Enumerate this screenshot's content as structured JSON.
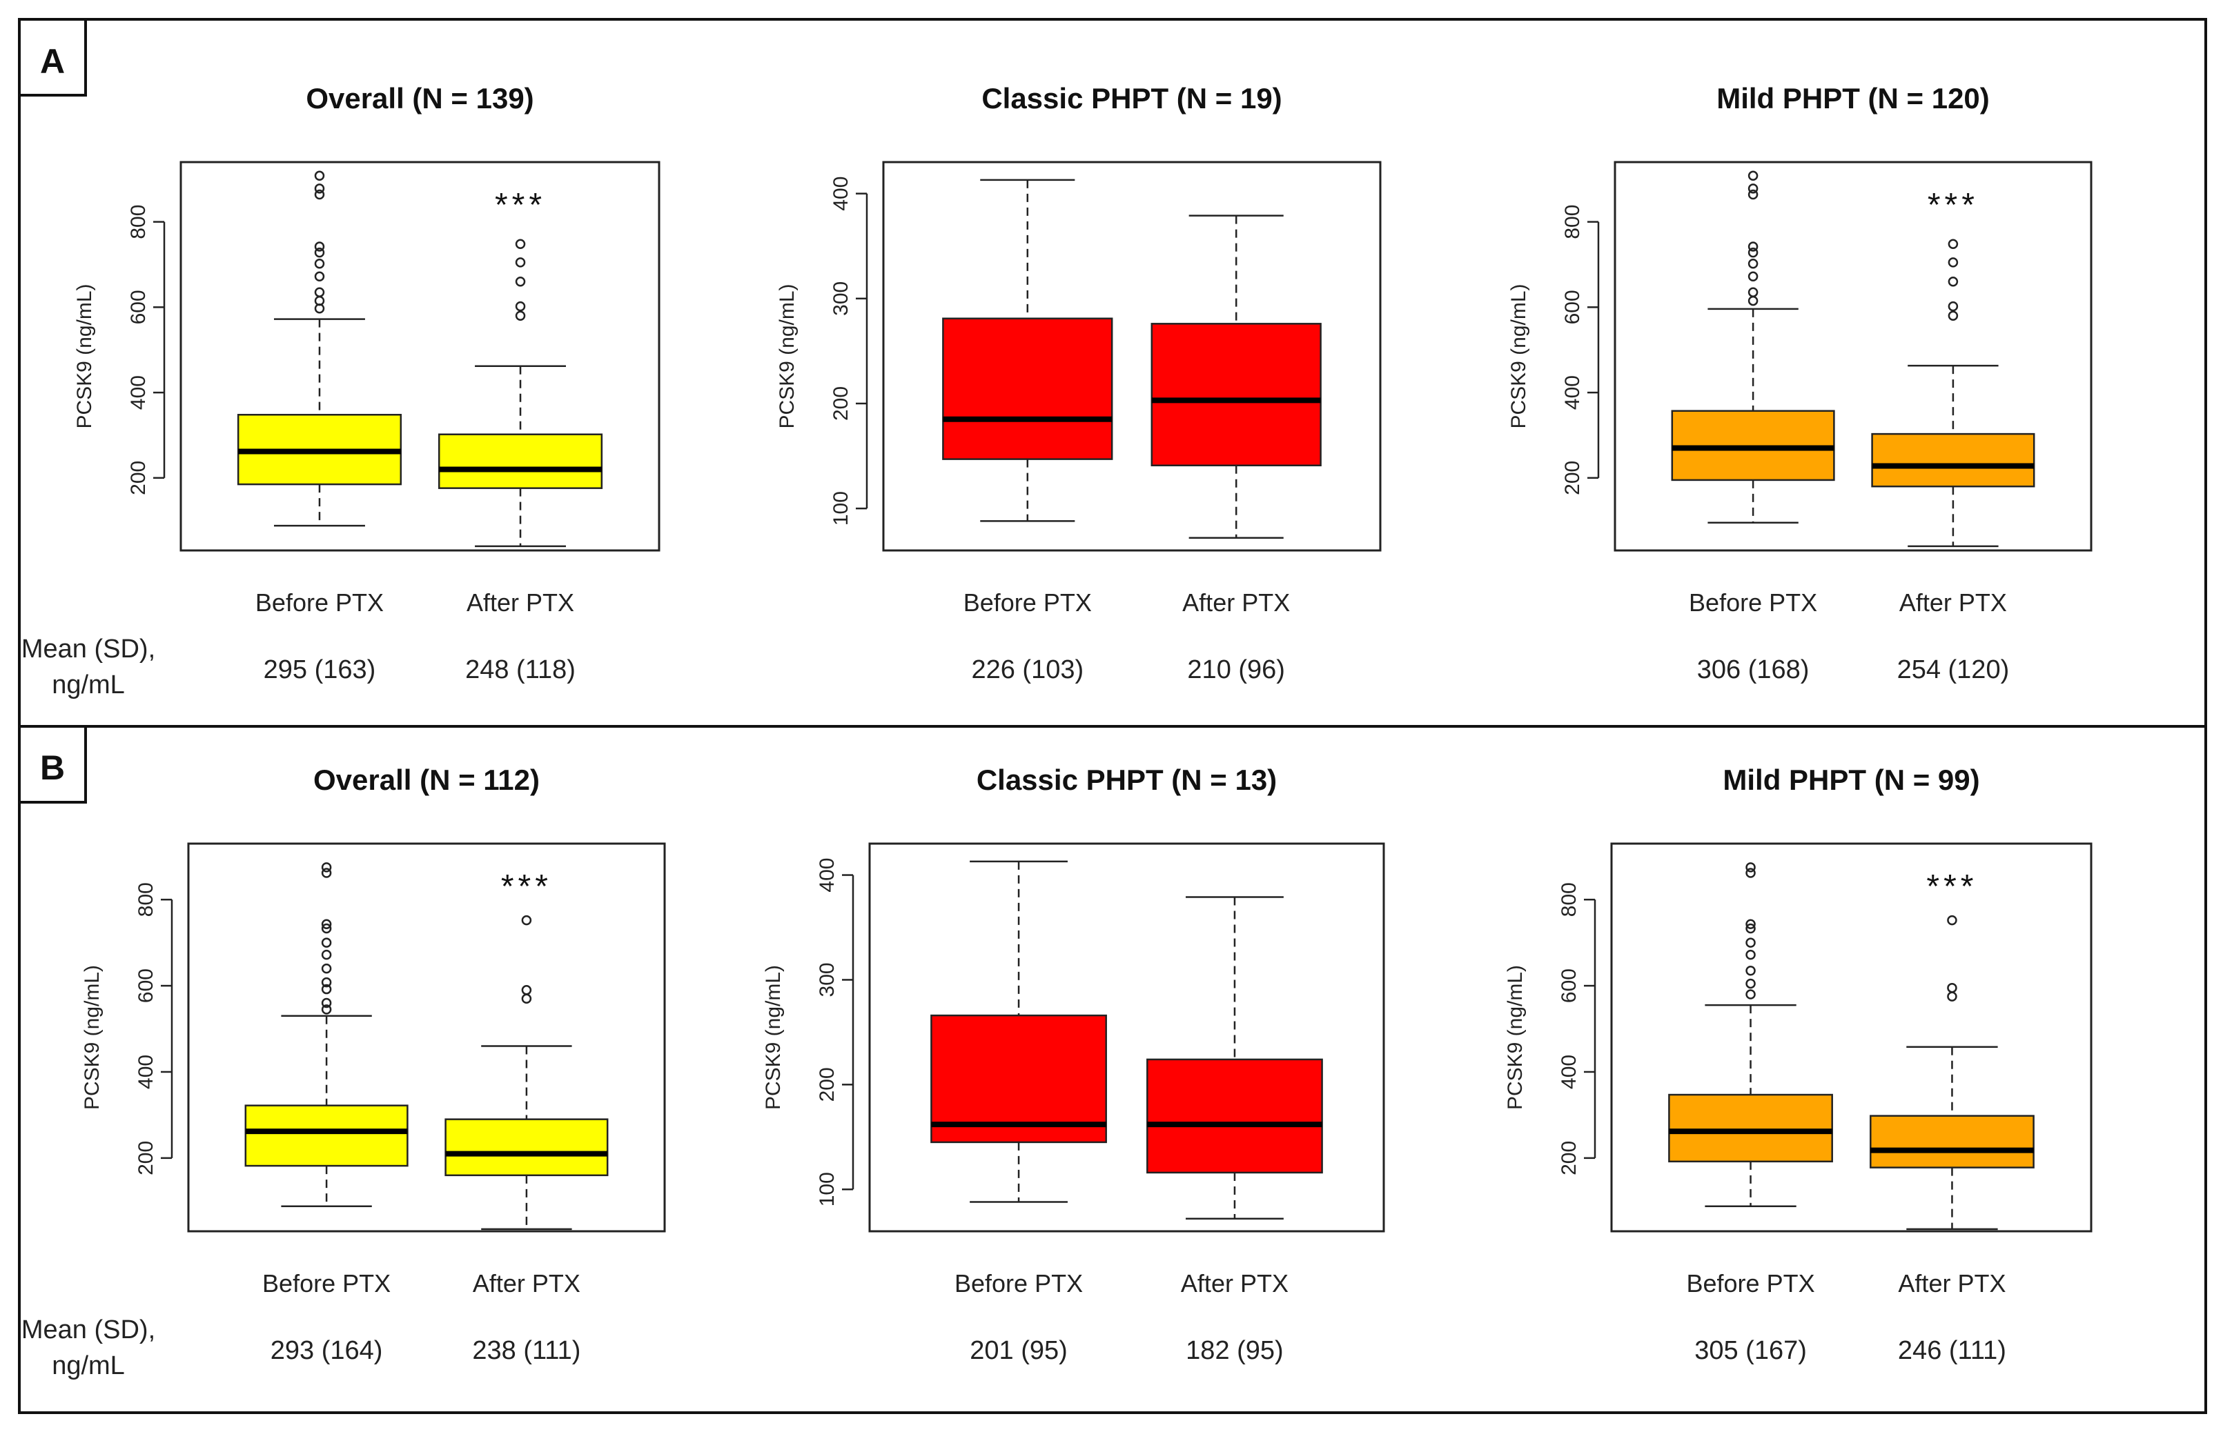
{
  "chart_data": [
    {
      "type": "boxplot",
      "panel": "A",
      "title": "Overall (N = 139)",
      "ylabel": "PCSK9 (ng/mL)",
      "ylim": [
        30,
        940
      ],
      "yticks": [
        200,
        400,
        600,
        800
      ],
      "color": "#ffff00",
      "categories": [
        "Before PTX",
        "After PTX"
      ],
      "boxes": [
        {
          "q1": 185,
          "median": 262,
          "q3": 348,
          "lower_whisker": 88,
          "upper_whisker": 572,
          "outliers": [
            597,
            615,
            635,
            672,
            702,
            728,
            742,
            864,
            878,
            908
          ]
        },
        {
          "q1": 176,
          "median": 220,
          "q3": 302,
          "lower_whisker": 40,
          "upper_whisker": 462,
          "outliers": [
            580,
            602,
            660,
            705,
            748
          ]
        }
      ],
      "significance": [
        "",
        "***"
      ],
      "mean_label": "Mean (SD),\nng/mL",
      "means": [
        "295 (163)",
        "248 (118)"
      ]
    },
    {
      "type": "boxplot",
      "panel": "A",
      "title": "Classic PHPT (N = 19)",
      "ylabel": "PCSK9 (ng/mL)",
      "ylim": [
        60,
        430
      ],
      "yticks": [
        100,
        200,
        300,
        400
      ],
      "color": "#ff0000",
      "categories": [
        "Before PTX",
        "After PTX"
      ],
      "boxes": [
        {
          "q1": 147,
          "median": 185,
          "q3": 281,
          "lower_whisker": 88,
          "upper_whisker": 413,
          "outliers": []
        },
        {
          "q1": 141,
          "median": 203,
          "q3": 276,
          "lower_whisker": 72,
          "upper_whisker": 379,
          "outliers": []
        }
      ],
      "significance": [
        "",
        ""
      ],
      "mean_label": "",
      "means": [
        "226 (103)",
        "210 (96)"
      ]
    },
    {
      "type": "boxplot",
      "panel": "A",
      "title": "Mild PHPT (N = 120)",
      "ylabel": "PCSK9 (ng/mL)",
      "ylim": [
        30,
        940
      ],
      "yticks": [
        200,
        400,
        600,
        800
      ],
      "color": "#ffa500",
      "categories": [
        "Before PTX",
        "After PTX"
      ],
      "boxes": [
        {
          "q1": 195,
          "median": 270,
          "q3": 357,
          "lower_whisker": 95,
          "upper_whisker": 596,
          "outliers": [
            615,
            635,
            672,
            702,
            728,
            742,
            864,
            878,
            908
          ]
        },
        {
          "q1": 180,
          "median": 228,
          "q3": 303,
          "lower_whisker": 40,
          "upper_whisker": 463,
          "outliers": [
            580,
            602,
            660,
            705,
            748
          ]
        }
      ],
      "significance": [
        "",
        "***"
      ],
      "mean_label": "",
      "means": [
        "306 (168)",
        "254 (120)"
      ]
    },
    {
      "type": "boxplot",
      "panel": "B",
      "title": "Overall (N = 112)",
      "ylabel": "PCSK9 (ng/mL)",
      "ylim": [
        30,
        930
      ],
      "yticks": [
        200,
        400,
        600,
        800
      ],
      "color": "#ffff00",
      "categories": [
        "Before PTX",
        "After PTX"
      ],
      "boxes": [
        {
          "q1": 182,
          "median": 262,
          "q3": 322,
          "lower_whisker": 88,
          "upper_whisker": 530,
          "outliers": [
            545,
            560,
            592,
            608,
            640,
            672,
            700,
            733,
            743,
            862,
            875
          ]
        },
        {
          "q1": 160,
          "median": 210,
          "q3": 290,
          "lower_whisker": 35,
          "upper_whisker": 460,
          "outliers": [
            570,
            590,
            752
          ]
        }
      ],
      "significance": [
        "",
        "***"
      ],
      "mean_label": "Mean (SD),\nng/mL",
      "means": [
        "293 (164)",
        "238 (111)"
      ]
    },
    {
      "type": "boxplot",
      "panel": "B",
      "title": "Classic PHPT (N = 13)",
      "ylabel": "PCSK9 (ng/mL)",
      "ylim": [
        60,
        430
      ],
      "yticks": [
        100,
        200,
        300,
        400
      ],
      "color": "#ff0000",
      "categories": [
        "Before PTX",
        "After PTX"
      ],
      "boxes": [
        {
          "q1": 145,
          "median": 162,
          "q3": 266,
          "lower_whisker": 88,
          "upper_whisker": 413,
          "outliers": []
        },
        {
          "q1": 116,
          "median": 162,
          "q3": 224,
          "lower_whisker": 72,
          "upper_whisker": 379,
          "outliers": []
        }
      ],
      "significance": [
        "",
        ""
      ],
      "mean_label": "",
      "means": [
        "201 (95)",
        "182 (95)"
      ]
    },
    {
      "type": "boxplot",
      "panel": "B",
      "title": "Mild PHPT (N = 99)",
      "ylabel": "PCSK9 (ng/mL)",
      "ylim": [
        30,
        930
      ],
      "yticks": [
        200,
        400,
        600,
        800
      ],
      "color": "#ffa500",
      "categories": [
        "Before PTX",
        "After PTX"
      ],
      "boxes": [
        {
          "q1": 192,
          "median": 262,
          "q3": 347,
          "lower_whisker": 88,
          "upper_whisker": 555,
          "outliers": [
            580,
            605,
            635,
            672,
            700,
            733,
            743,
            862,
            875
          ]
        },
        {
          "q1": 178,
          "median": 218,
          "q3": 298,
          "lower_whisker": 35,
          "upper_whisker": 458,
          "outliers": [
            575,
            595,
            752
          ]
        }
      ],
      "significance": [
        "",
        "***"
      ],
      "mean_label": "",
      "means": [
        "305 (167)",
        "246 (111)"
      ]
    }
  ],
  "panel_labels": [
    "A",
    "B"
  ]
}
